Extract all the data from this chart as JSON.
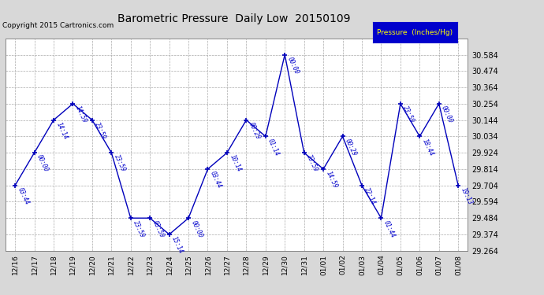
{
  "title": "Barometric Pressure  Daily Low  20150109",
  "copyright": "Copyright 2015 Cartronics.com",
  "legend_label": "Pressure  (Inches/Hg)",
  "x_labels": [
    "12/16",
    "12/17",
    "12/18",
    "12/19",
    "12/20",
    "12/21",
    "12/22",
    "12/23",
    "12/24",
    "12/25",
    "12/26",
    "12/27",
    "12/28",
    "12/29",
    "12/30",
    "12/31",
    "01/01",
    "01/02",
    "01/03",
    "01/04",
    "01/05",
    "01/06",
    "01/07",
    "01/08"
  ],
  "y_values": [
    29.704,
    29.924,
    30.144,
    30.254,
    30.144,
    29.924,
    29.484,
    29.484,
    29.374,
    29.484,
    29.814,
    29.924,
    30.144,
    30.034,
    30.584,
    29.924,
    29.814,
    30.034,
    29.704,
    29.484,
    30.254,
    30.034,
    30.254,
    29.704
  ],
  "point_labels": [
    "03:44",
    "00:00",
    "14:14",
    "14:59",
    "23:59",
    "23:59",
    "23:59",
    "03:59",
    "15:14",
    "00:00",
    "03:44",
    "10:14",
    "00:29",
    "01:14",
    "00:00",
    "23:59",
    "14:59",
    "00:29",
    "22:14",
    "01:44",
    "23:59",
    "18:44",
    "00:00",
    "19:13"
  ],
  "ylim_min": 29.264,
  "ylim_max": 30.694,
  "yticks": [
    29.264,
    29.374,
    29.484,
    29.594,
    29.704,
    29.814,
    29.924,
    30.034,
    30.144,
    30.254,
    30.364,
    30.474,
    30.584
  ],
  "line_color": "#0000bb",
  "marker_color": "#0000bb",
  "background_color": "#d8d8d8",
  "plot_bg_color": "#ffffff",
  "grid_color": "#aaaaaa",
  "title_color": "#000000",
  "label_color": "#0000cc",
  "legend_bg": "#0000cc",
  "legend_text_color": "#ffff00",
  "figwidth": 6.9,
  "figheight": 3.75,
  "dpi": 100
}
